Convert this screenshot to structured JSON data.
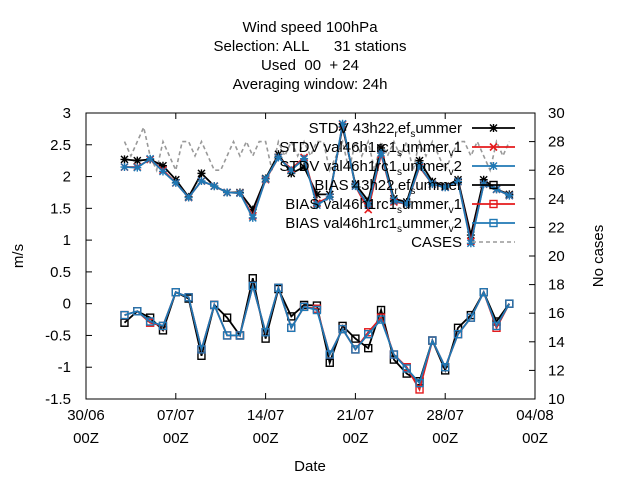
{
  "chart_data": {
    "type": "line",
    "title_lines": [
      "Wind speed 100hPa",
      "Selection: ALL      31 stations",
      "Used  00  + 24",
      "Averaging window: 24h"
    ],
    "xlabel": "Date",
    "ylabel": "m/s",
    "y2label": "No cases",
    "xlim": [
      0,
      35
    ],
    "ylim": [
      -1.5,
      3
    ],
    "y2lim": [
      10,
      30
    ],
    "x_ticks": [
      {
        "x": 0,
        "line1": "30/06",
        "line2": "00Z"
      },
      {
        "x": 7,
        "line1": "07/07",
        "line2": "00Z"
      },
      {
        "x": 14,
        "line1": "14/07",
        "line2": "00Z"
      },
      {
        "x": 21,
        "line1": "21/07",
        "line2": "00Z"
      },
      {
        "x": 28,
        "line1": "28/07",
        "line2": "00Z"
      },
      {
        "x": 35,
        "line1": "04/08",
        "line2": "00Z"
      }
    ],
    "y_ticks": [
      "3",
      "2.5",
      "2",
      "1.5",
      "1",
      "0.5",
      "0",
      "-0.5",
      "-1",
      "-1.5"
    ],
    "y2_ticks": [
      "30",
      "28",
      "26",
      "24",
      "22",
      "20",
      "18",
      "16",
      "14",
      "12",
      "10"
    ],
    "legend_position": "top-right",
    "x": [
      3,
      4,
      5,
      6,
      7,
      8,
      9,
      10,
      11,
      12,
      13,
      14,
      15,
      16,
      17,
      18,
      19,
      20,
      21,
      22,
      23,
      24,
      25,
      26,
      27,
      28,
      29,
      30,
      31,
      32,
      33
    ],
    "series": [
      {
        "name": "STDV 43h22_r ef_s ummer",
        "legend_parts": [
          "STDV 43h22",
          "r",
          "ef",
          "s",
          "ummer"
        ],
        "color": "#000000",
        "marker": "star",
        "group": "stdv",
        "values": [
          2.27,
          2.25,
          2.27,
          2.17,
          1.95,
          1.68,
          2.05,
          1.85,
          1.75,
          1.75,
          1.48,
          1.97,
          2.35,
          2.05,
          2.15,
          1.72,
          1.72,
          2.78,
          1.88,
          1.62,
          2.45,
          1.65,
          1.6,
          2.25,
          1.92,
          1.85,
          1.95,
          1.08,
          1.95,
          1.8,
          1.72
        ]
      },
      {
        "name": "STDV val46h1rc1_s ummer_v 1",
        "legend_parts": [
          "STDV val46h1rc1",
          "s",
          "ummer",
          "v",
          "1"
        ],
        "color": "#e41a1c",
        "marker": "x",
        "group": "stdv",
        "values": [
          2.15,
          2.15,
          2.27,
          2.1,
          1.9,
          1.67,
          1.93,
          1.85,
          1.75,
          1.74,
          1.38,
          1.95,
          2.3,
          2.12,
          2.3,
          1.58,
          1.68,
          2.82,
          1.85,
          1.48,
          2.35,
          1.6,
          1.57,
          2.15,
          1.88,
          1.83,
          1.92,
          0.98,
          1.88,
          1.8,
          1.7
        ]
      },
      {
        "name": "STDV val46h1rc1_s ummer_v 2",
        "legend_parts": [
          "STDV val46h1rc1",
          "s",
          "ummer",
          "v",
          "2"
        ],
        "color": "#1f78b4",
        "marker": "star",
        "group": "stdv",
        "values": [
          2.15,
          2.14,
          2.28,
          2.08,
          1.9,
          1.67,
          1.93,
          1.85,
          1.75,
          1.74,
          1.35,
          1.96,
          2.3,
          2.1,
          2.28,
          1.55,
          1.68,
          2.83,
          1.85,
          1.55,
          2.37,
          1.62,
          1.57,
          2.17,
          1.88,
          1.83,
          1.92,
          0.95,
          1.88,
          1.8,
          1.7
        ]
      },
      {
        "name": "BIAS 43h22_r ef_s ummer",
        "legend_parts": [
          "BIAS 43h22",
          "r",
          "ef",
          "s",
          "ummer"
        ],
        "color": "#000000",
        "marker": "square",
        "group": "bias",
        "values": [
          -0.3,
          -0.12,
          -0.22,
          -0.42,
          0.18,
          0.08,
          -0.82,
          -0.02,
          -0.22,
          -0.5,
          0.4,
          -0.55,
          0.23,
          -0.2,
          -0.02,
          -0.03,
          -0.93,
          -0.35,
          -0.55,
          -0.7,
          -0.1,
          -0.88,
          -1.1,
          -1.22,
          -0.58,
          -1.05,
          -0.38,
          -0.18,
          0.18,
          -0.28,
          0
        ]
      },
      {
        "name": "BIAS val46h1rc1_s ummer_v 1",
        "legend_parts": [
          "BIAS val46h1rc1",
          "s",
          "ummer",
          "v",
          "1"
        ],
        "color": "#e41a1c",
        "marker": "square",
        "group": "bias",
        "values": [
          -0.18,
          -0.12,
          -0.3,
          -0.35,
          0.18,
          0.1,
          -0.72,
          -0.02,
          -0.5,
          -0.5,
          0.28,
          -0.45,
          0.25,
          -0.38,
          -0.05,
          -0.08,
          -0.8,
          -0.4,
          -0.72,
          -0.45,
          -0.22,
          -0.8,
          -1.0,
          -1.35,
          -0.58,
          -1.0,
          -0.48,
          -0.22,
          0.18,
          -0.38,
          0
        ]
      },
      {
        "name": "BIAS val46h1rc1_s ummer_v 2",
        "legend_parts": [
          "BIAS val46h1rc1",
          "s",
          "ummer",
          "v",
          "2"
        ],
        "color": "#1f78b4",
        "marker": "square",
        "group": "bias",
        "values": [
          -0.18,
          -0.12,
          -0.28,
          -0.35,
          0.18,
          0.1,
          -0.72,
          -0.02,
          -0.5,
          -0.5,
          0.28,
          -0.45,
          0.25,
          -0.38,
          -0.05,
          -0.1,
          -0.8,
          -0.4,
          -0.72,
          -0.48,
          -0.25,
          -0.8,
          -1.02,
          -1.25,
          -0.58,
          -1.0,
          -0.48,
          -0.22,
          0.18,
          -0.35,
          0
        ]
      },
      {
        "name": "CASES",
        "legend_parts": [
          "CASES"
        ],
        "color": "#999999",
        "axis": "y2",
        "dashed": true,
        "group": "cases",
        "x": [
          3,
          3.5,
          4,
          4.5,
          5,
          5.5,
          6,
          6.5,
          7,
          7.5,
          8,
          8.5,
          9,
          9.5,
          10,
          10.5,
          11,
          11.5,
          12,
          12.5,
          13,
          13.5,
          14,
          14.5,
          15,
          15.5,
          16,
          16.5,
          17,
          17.5,
          18,
          18.5,
          19,
          19.5,
          20,
          20.5,
          21,
          21.5,
          22,
          22.5,
          23,
          23.5,
          24,
          24.5,
          25,
          25.5,
          26,
          26.5,
          27,
          27.5,
          28,
          28.5,
          29,
          29.5,
          30,
          30.5,
          31,
          31.5,
          32,
          32.5,
          33
        ],
        "values": [
          28,
          27,
          28,
          29,
          27,
          26,
          28,
          27,
          26,
          28,
          28,
          27,
          28,
          27,
          26,
          26,
          27,
          28,
          27,
          28,
          27,
          28,
          28,
          26,
          28,
          27,
          28,
          27,
          28,
          27,
          28,
          28,
          26,
          27,
          28,
          26,
          28,
          27,
          28,
          26,
          28,
          27,
          28,
          27,
          28,
          26,
          28,
          27,
          28,
          27,
          26,
          27,
          28,
          28,
          27,
          28,
          27,
          26,
          28,
          27,
          28
        ]
      }
    ]
  }
}
